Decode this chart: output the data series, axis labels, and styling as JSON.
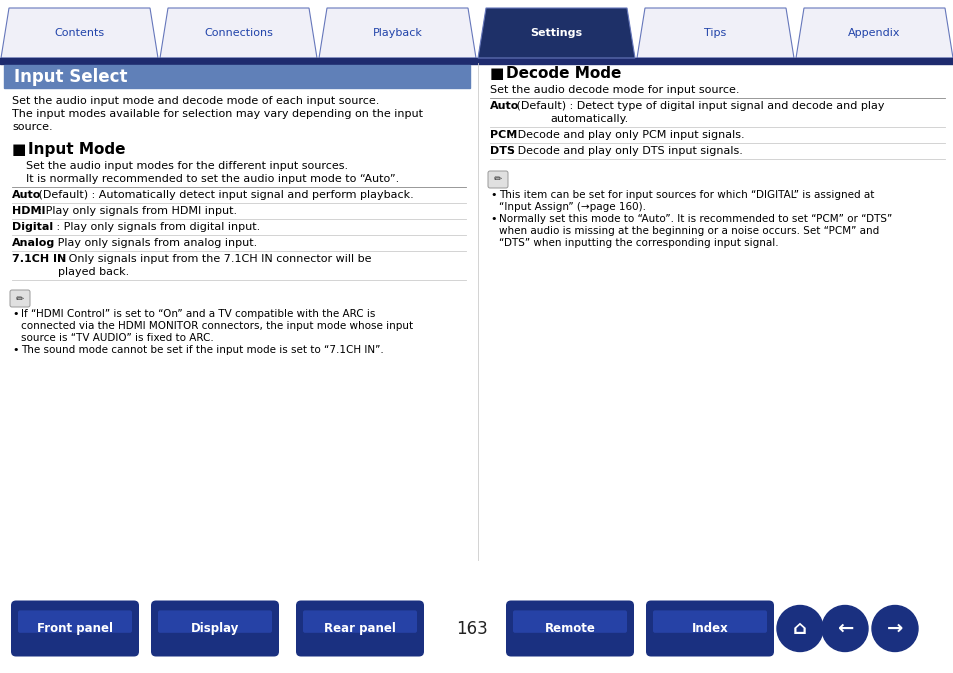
{
  "page_bg": "#ffffff",
  "tab_dark_bg": "#1e2b6e",
  "tab_active_bg": "#1e3068",
  "tab_inactive_bg": "#f0f0f8",
  "tab_border": "#6677bb",
  "tab_active_text": "#ffffff",
  "tab_inactive_text": "#2244aa",
  "tabs": [
    "Contents",
    "Connections",
    "Playback",
    "Settings",
    "Tips",
    "Appendix"
  ],
  "active_tab": 3,
  "title_bg": "#6080b8",
  "title_text": "Input Select",
  "title_fg": "#ffffff",
  "left_intro1": "Set the audio input mode and decode mode of each input source.",
  "left_intro2": "The input modes available for selection may vary depending on the input",
  "left_intro3": "source.",
  "im_header": "Input Mode",
  "im_intro1": "Set the audio input modes for the different input sources.",
  "im_intro2": "It is normally recommended to set the audio input mode to “Auto”.",
  "dm_header": "Decode Mode",
  "dm_intro": "Set the audio decode mode for input source.",
  "page_num": "163",
  "btn_bg": "#1a3080",
  "btn_fg": "#ffffff",
  "btns_left": [
    "Front panel",
    "Display",
    "Rear panel"
  ],
  "btns_right": [
    "Remote",
    "Index"
  ]
}
